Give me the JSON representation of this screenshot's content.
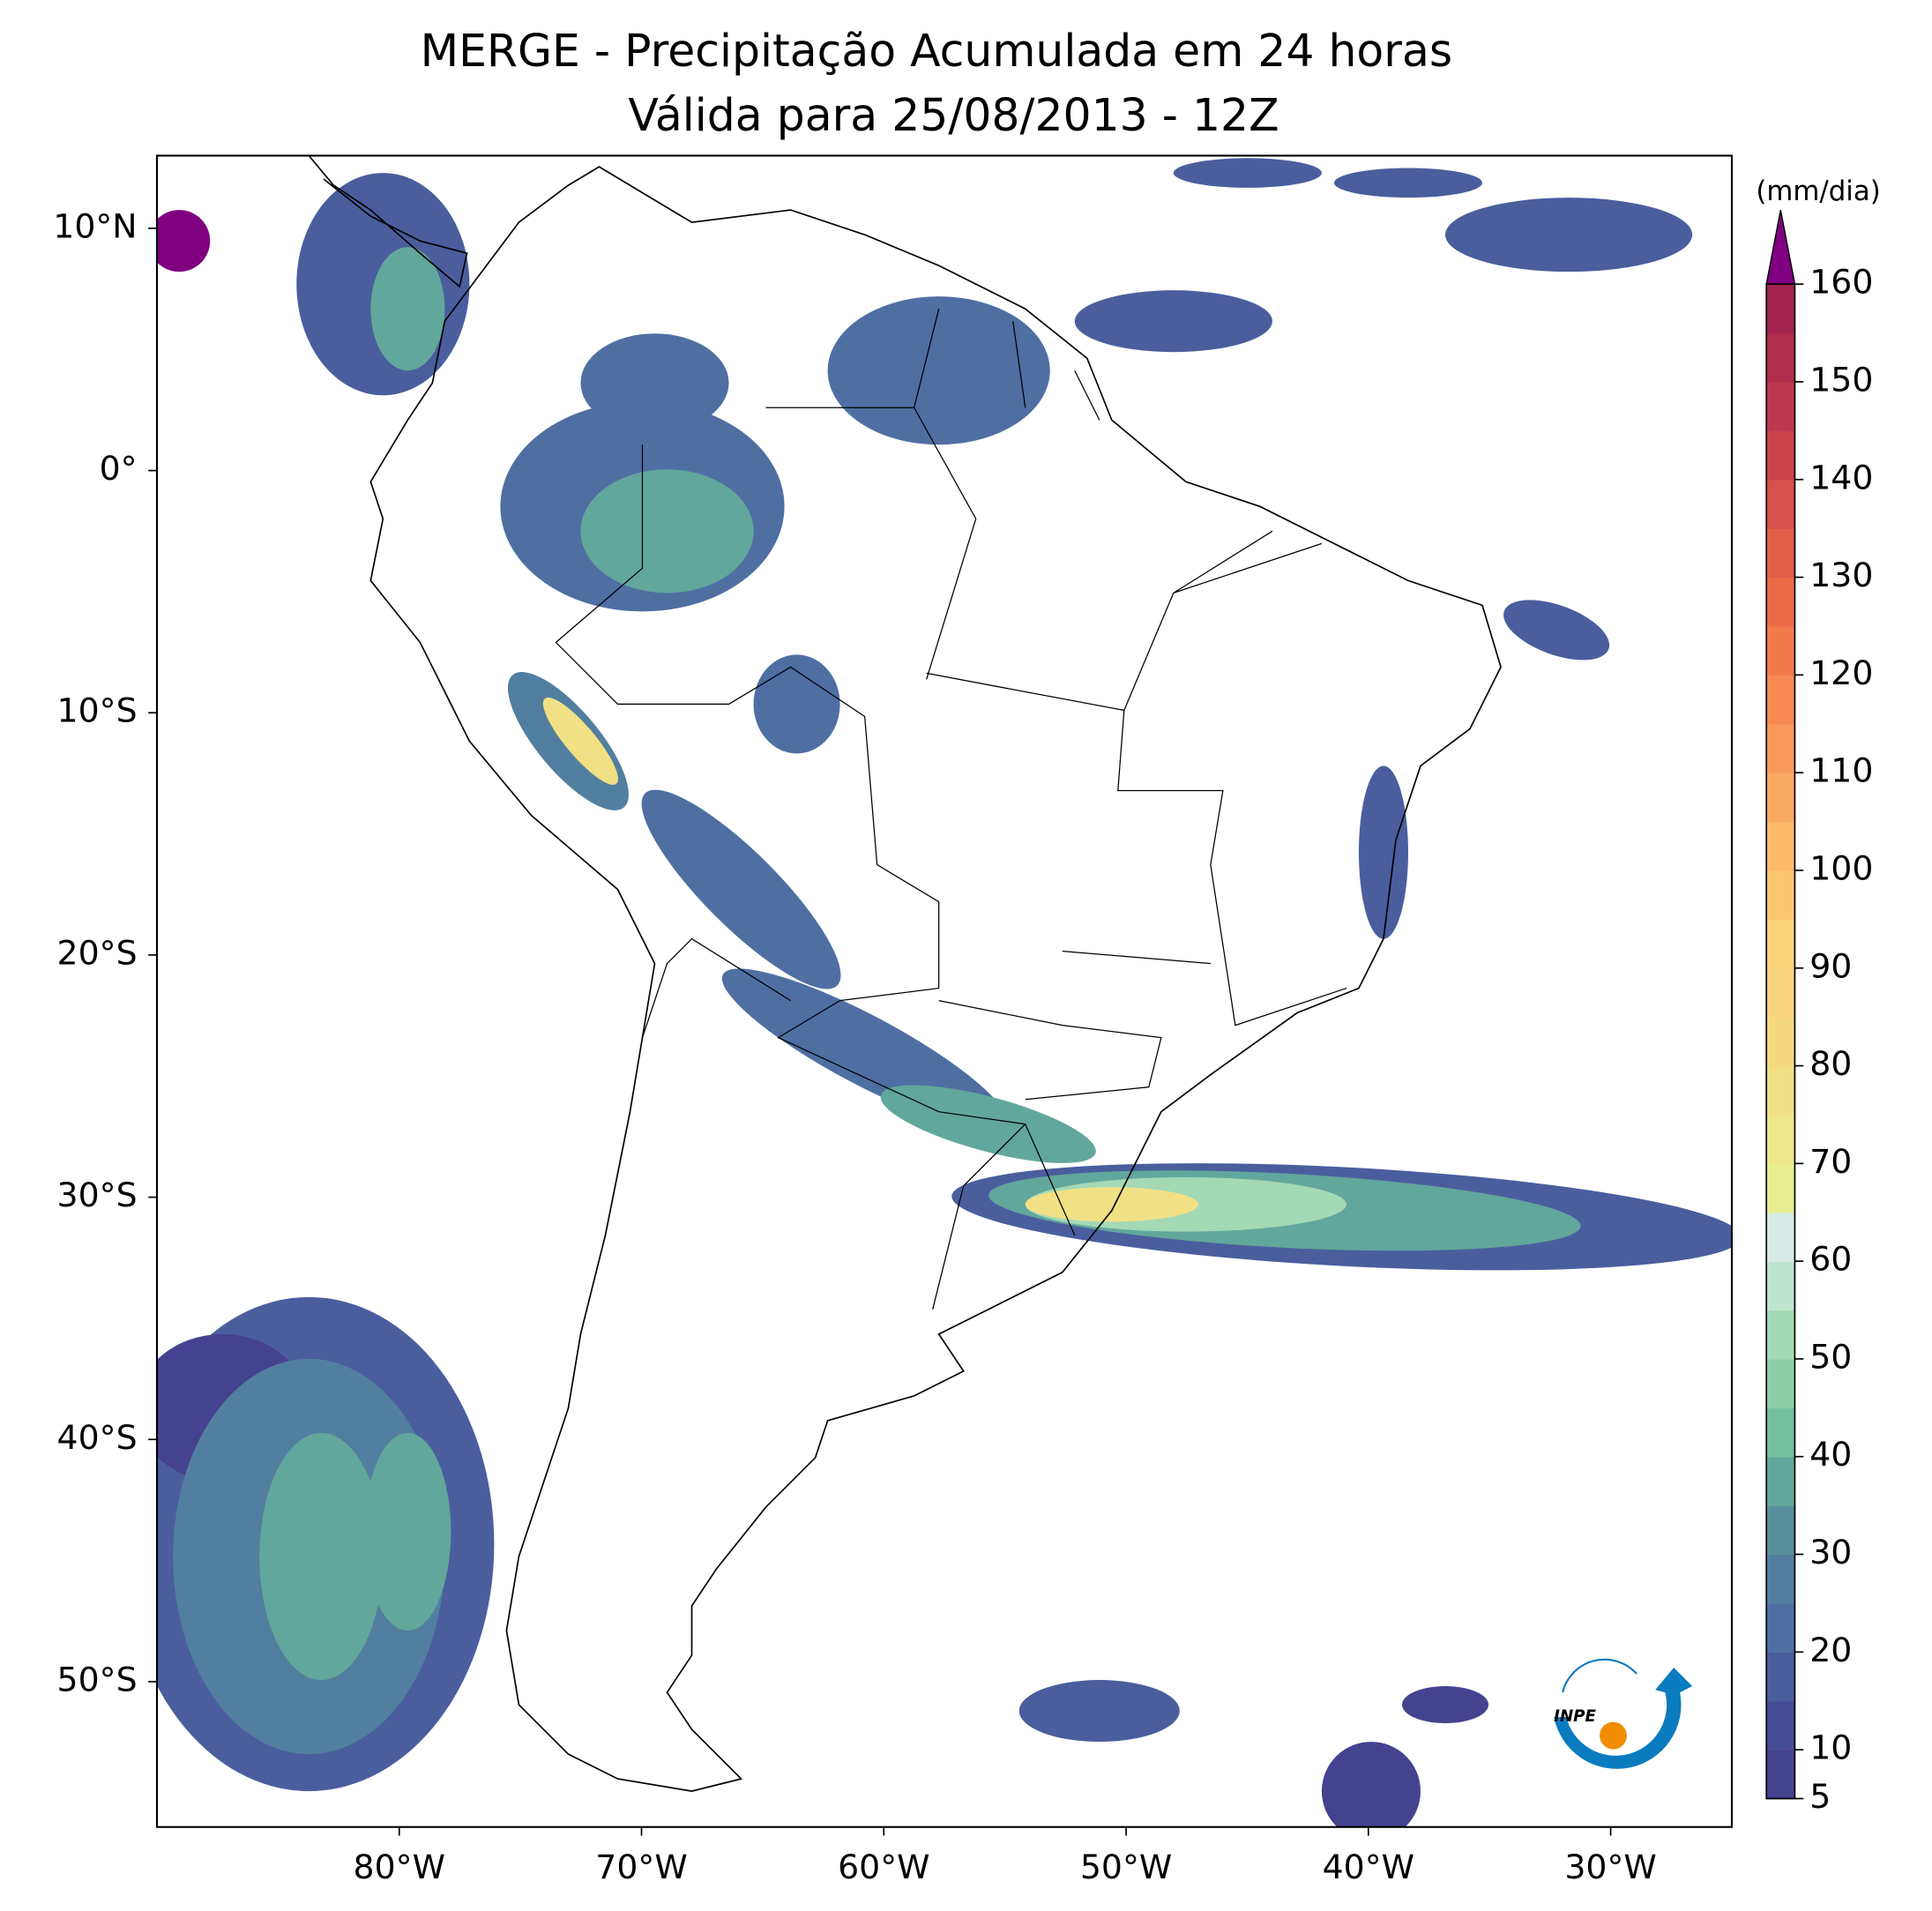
{
  "title": "MERGE - Precipitação Acumulada em 24 horas",
  "subtitle": "Válida para 25/08/2013 - 12Z",
  "map": {
    "xlim": [
      -90,
      -25
    ],
    "ylim": [
      -56,
      13
    ],
    "xticks": [
      {
        "value": -80,
        "label": "80°W"
      },
      {
        "value": -70,
        "label": "70°W"
      },
      {
        "value": -60,
        "label": "60°W"
      },
      {
        "value": -50,
        "label": "50°W"
      },
      {
        "value": -40,
        "label": "40°W"
      },
      {
        "value": -30,
        "label": "30°W"
      }
    ],
    "yticks": [
      {
        "value": 10,
        "label": "10°N"
      },
      {
        "value": 0,
        "label": "0°"
      },
      {
        "value": -10,
        "label": "10°S"
      },
      {
        "value": -20,
        "label": "20°S"
      },
      {
        "value": -30,
        "label": "30°S"
      },
      {
        "value": -40,
        "label": "40°S"
      },
      {
        "value": -50,
        "label": "50°S"
      }
    ]
  },
  "colorbar": {
    "unit": "(mm/dia)",
    "range": [
      5,
      160
    ],
    "ticks": [
      5,
      10,
      20,
      30,
      40,
      50,
      60,
      70,
      80,
      90,
      100,
      110,
      120,
      130,
      140,
      150,
      160
    ],
    "colors": [
      "#45428f",
      "#464d96",
      "#4a5e9e",
      "#4f6fa3",
      "#527f9f",
      "#57909c",
      "#62a79b",
      "#72c0a0",
      "#8ccfaa",
      "#a4d9b6",
      "#bfe4cf",
      "#d6ebe6",
      "#e6ee8f",
      "#eee88b",
      "#f2e085",
      "#f5d97f",
      "#f8d47c",
      "#fbd47a",
      "#fcc66f",
      "#fcb968",
      "#fbaa62",
      "#f99a5a",
      "#f68a52",
      "#f27b4c",
      "#ec6b47",
      "#e35e48",
      "#d8514a",
      "#cc444b",
      "#be384d",
      "#b02d4e",
      "#a3244f"
    ],
    "over_color": "#800080"
  },
  "logo": "INPE"
}
